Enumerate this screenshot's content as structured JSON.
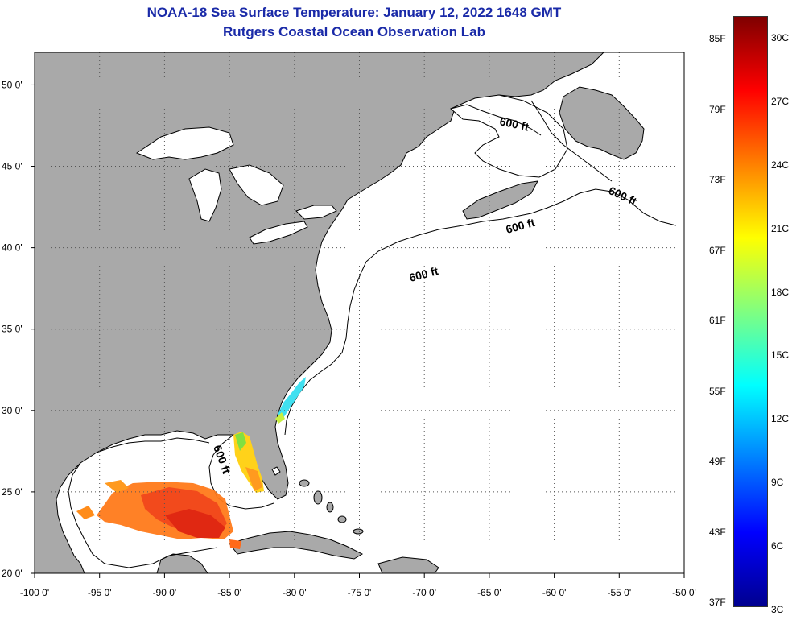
{
  "header": {
    "title": "NOAA-18 Sea Surface Temperature:  January 12, 2022 1648 GMT",
    "subtitle": "Rutgers Coastal Ocean Observation Lab"
  },
  "map": {
    "lon_range": [
      -100,
      -50
    ],
    "lat_range": [
      20,
      52
    ],
    "lon_ticks": [
      "-100 0'",
      "-95 0'",
      "-90 0'",
      "-85 0'",
      "-80 0'",
      "-75 0'",
      "-70 0'",
      "-65 0'",
      "-60 0'",
      "-55 0'",
      "-50 0'"
    ],
    "lat_ticks": [
      "20 0'",
      "25 0'",
      "30 0'",
      "35 0'",
      "40 0'",
      "45 0'",
      "50 0'"
    ],
    "contour_label": "600 ft",
    "land_color": "#a9a9a9",
    "water_color": "#ffffff",
    "grid": "dotted"
  },
  "colorbar": {
    "f_labels": [
      "85F",
      "79F",
      "73F",
      "67F",
      "61F",
      "55F",
      "49F",
      "43F",
      "37F"
    ],
    "c_labels": [
      "30C",
      "27C",
      "24C",
      "21C",
      "18C",
      "15C",
      "12C",
      "9C",
      "6C",
      "3C"
    ],
    "colors": [
      "#7f0000",
      "#ff0000",
      "#ff8000",
      "#ffff00",
      "#80ff80",
      "#00ffff",
      "#0080ff",
      "#0000ff",
      "#00008f"
    ]
  }
}
